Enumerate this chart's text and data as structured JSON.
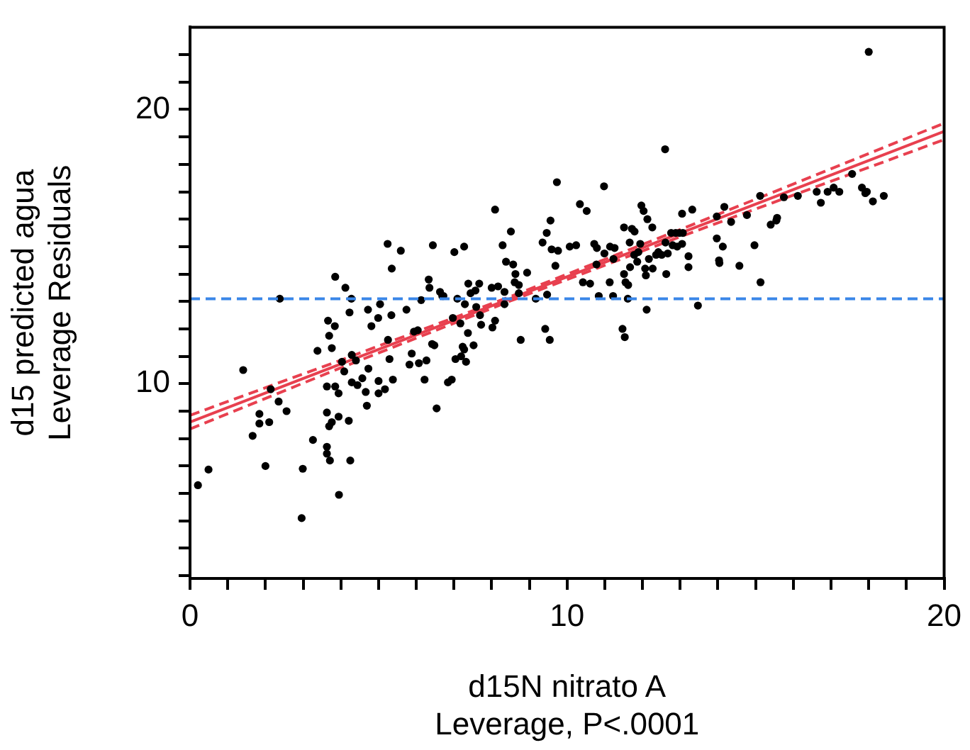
{
  "chart_data": {
    "type": "scatter",
    "xlabel": "d15N nitrato A\nLeverage, P<.0001",
    "ylabel": "d15 predicted agua\nLeverage Residuals",
    "xlim": [
      0,
      20
    ],
    "ylim": [
      2.9,
      23
    ],
    "xticks": [
      0,
      {
        "value": 1,
        "label": null
      },
      {
        "value": 2,
        "label": null
      },
      {
        "value": 3,
        "label": null
      },
      {
        "value": 4,
        "label": null
      },
      {
        "value": 5,
        "label": null
      },
      {
        "value": 6,
        "label": null
      },
      {
        "value": 7,
        "label": null
      },
      {
        "value": 8,
        "label": null
      },
      {
        "value": 9,
        "label": null
      },
      10,
      {
        "value": 11,
        "label": null
      },
      {
        "value": 12,
        "label": null
      },
      {
        "value": 13,
        "label": null
      },
      {
        "value": 14,
        "label": null
      },
      {
        "value": 15,
        "label": null
      },
      {
        "value": 16,
        "label": null
      },
      {
        "value": 17,
        "label": null
      },
      {
        "value": 18,
        "label": null
      },
      {
        "value": 19,
        "label": null
      },
      20
    ],
    "yticks": [
      {
        "value": 3,
        "label": null
      },
      {
        "value": 4,
        "label": null
      },
      {
        "value": 5,
        "label": null
      },
      {
        "value": 6,
        "label": null
      },
      {
        "value": 7,
        "label": null
      },
      {
        "value": 8,
        "label": null
      },
      {
        "value": 9,
        "label": null
      },
      10,
      {
        "value": 11,
        "label": null
      },
      {
        "value": 12,
        "label": null
      },
      {
        "value": 13,
        "label": null
      },
      {
        "value": 14,
        "label": null
      },
      {
        "value": 15,
        "label": null
      },
      {
        "value": 16,
        "label": null
      },
      {
        "value": 17,
        "label": null
      },
      {
        "value": 18,
        "label": null
      },
      {
        "value": 19,
        "label": null
      },
      20,
      {
        "value": 21,
        "label": null
      },
      {
        "value": 22,
        "label": null
      }
    ],
    "grid": false,
    "legend": false,
    "ref_lines": [
      {
        "axis": "y",
        "value": 13.1,
        "color": "#3a86e8",
        "line_style": "dashed"
      }
    ],
    "series": [
      {
        "color": "#000000",
        "marker": "circle",
        "x": [
          0.21,
          0.49,
          1.41,
          1.66,
          1.84,
          1.84,
          2.1,
          2.0,
          2.14,
          2.35,
          2.56,
          2.38,
          2.96,
          2.99,
          3.26,
          3.38,
          3.63,
          3.66,
          3.69,
          3.76,
          3.84,
          3.63,
          3.69,
          3.76,
          3.63,
          3.63,
          3.71,
          3.95,
          3.94,
          3.85,
          3.94,
          4.03,
          4.09,
          4.21,
          4.25,
          4.23,
          4.28,
          4.29,
          4.4,
          4.29,
          4.44,
          4.57,
          4.66,
          4.69,
          4.72,
          4.81,
          4.73,
          5.0,
          5.0,
          5.04,
          4.99,
          5.17,
          5.25,
          5.29,
          5.34,
          5.38,
          5.74,
          5.88,
          5.82,
          5.94,
          6.04,
          6.07,
          6.22,
          6.27,
          6.13,
          6.42,
          6.48,
          6.54,
          6.69,
          6.84,
          6.94,
          6.97,
          7.04,
          7.09,
          7.17,
          7.23,
          7.27,
          7.19,
          7.32,
          7.29,
          7.37,
          7.52,
          7.59,
          7.69,
          7.72,
          8.02,
          8.09,
          8.34,
          8.77,
          9.17,
          9.42,
          9.54,
          3.85,
          4.12,
          5.24,
          5.35,
          5.59,
          6.33,
          6.35,
          6.44,
          6.63,
          6.72,
          7.01,
          7.27,
          7.38,
          7.44,
          7.57,
          7.67,
          8.0,
          8.09,
          8.17,
          8.29,
          8.38,
          8.51,
          8.57,
          8.63,
          8.61,
          8.72,
          8.72,
          8.34,
          8.94,
          9.35,
          9.46,
          9.56,
          9.59,
          9.76,
          9.73,
          9.69,
          9.47,
          10.07,
          10.24,
          10.34,
          10.52,
          10.42,
          10.61,
          10.72,
          10.79,
          10.78,
          10.84,
          10.98,
          10.99,
          11.13,
          11.14,
          11.22,
          11.26,
          11.23,
          11.51,
          11.51,
          11.55,
          11.62,
          11.61,
          11.66,
          11.67,
          11.72,
          11.79,
          11.78,
          11.86,
          11.89,
          11.94,
          11.97,
          12.03,
          12.07,
          12.09,
          12.13,
          12.17,
          12.26,
          12.27,
          12.36,
          12.42,
          12.51,
          12.6,
          12.61,
          12.63,
          12.67,
          12.76,
          12.8,
          12.88,
          12.92,
          12.98,
          13.05,
          13.07,
          13.05,
          13.22,
          13.22,
          13.32,
          13.47,
          13.97,
          13.97,
          14.03,
          14.04,
          14.13,
          14.17,
          14.35,
          14.57,
          14.77,
          14.97,
          15.12,
          15.13,
          15.4,
          15.55,
          15.57,
          15.75,
          16.12,
          16.62,
          16.73,
          16.91,
          17.07,
          17.22,
          17.56,
          17.82,
          17.91,
          17.95,
          18.11,
          18.4,
          18.0,
          12.11,
          11.47,
          11.53
        ],
        "values": [
          6.3,
          6.87,
          10.5,
          8.1,
          8.9,
          8.55,
          8.6,
          7.0,
          9.8,
          9.35,
          9.0,
          13.1,
          5.1,
          6.9,
          7.95,
          11.2,
          9.9,
          12.3,
          11.75,
          11.3,
          12.1,
          8.95,
          8.45,
          8.6,
          7.7,
          7.45,
          7.2,
          5.95,
          8.8,
          9.9,
          9.65,
          10.8,
          10.45,
          8.65,
          7.2,
          12.6,
          13.1,
          11.05,
          10.85,
          10.05,
          9.95,
          10.2,
          9.7,
          9.2,
          12.7,
          12.1,
          10.55,
          10.1,
          9.65,
          12.9,
          12.4,
          9.8,
          11.6,
          10.9,
          12.5,
          10.15,
          12.7,
          11.1,
          10.7,
          11.9,
          11.95,
          10.75,
          10.15,
          10.85,
          13.05,
          11.45,
          11.4,
          9.1,
          13.2,
          10.05,
          10.15,
          12.4,
          10.9,
          13.1,
          12.2,
          11.35,
          11.25,
          11.0,
          10.8,
          12.9,
          11.85,
          11.4,
          12.8,
          12.5,
          12.15,
          12.05,
          12.3,
          12.9,
          11.6,
          13.1,
          12.0,
          11.6,
          13.9,
          13.5,
          15.1,
          14.2,
          14.85,
          13.8,
          13.5,
          15.05,
          13.35,
          13.2,
          14.8,
          15.0,
          13.65,
          13.3,
          13.4,
          13.65,
          13.5,
          16.35,
          13.55,
          15.05,
          14.45,
          15.55,
          14.35,
          14.0,
          13.7,
          13.6,
          13.3,
          13.35,
          14.05,
          15.15,
          15.5,
          15.95,
          14.9,
          14.85,
          17.35,
          14.3,
          13.25,
          15.0,
          15.05,
          16.55,
          16.3,
          13.7,
          13.65,
          15.1,
          14.95,
          14.35,
          13.2,
          17.2,
          14.75,
          13.7,
          15.0,
          13.2,
          14.95,
          14.55,
          15.7,
          14.0,
          13.7,
          13.6,
          13.1,
          15.15,
          14.25,
          15.65,
          15.55,
          14.7,
          14.45,
          14.8,
          15.1,
          16.5,
          16.3,
          14.2,
          13.95,
          16.0,
          14.55,
          15.7,
          14.2,
          14.7,
          14.8,
          14.7,
          18.55,
          15.15,
          14.0,
          14.75,
          15.5,
          15.05,
          15.5,
          15.0,
          15.5,
          16.2,
          15.5,
          15.1,
          14.65,
          14.25,
          16.35,
          12.85,
          16.1,
          15.3,
          14.5,
          14.4,
          15.0,
          16.45,
          15.9,
          14.3,
          16.15,
          15.05,
          16.85,
          13.7,
          15.8,
          15.95,
          16.05,
          16.8,
          16.85,
          17.0,
          16.6,
          17.0,
          17.15,
          17.0,
          17.65,
          17.15,
          16.95,
          17.0,
          16.65,
          16.85,
          22.1,
          12.7,
          12.0,
          11.7
        ]
      },
      {
        "type": "line",
        "color": "#e8404f",
        "line_style": "solid",
        "marker": "none",
        "x": [
          0,
          20
        ],
        "values": [
          8.6,
          19.2
        ]
      },
      {
        "type": "line",
        "color": "#e8404f",
        "line_style": "dashed",
        "marker": "none",
        "x": [
          0,
          4,
          8.5,
          13,
          20
        ],
        "values": [
          8.85,
          10.86,
          13.18,
          15.62,
          19.5
        ]
      },
      {
        "type": "line",
        "color": "#e8404f",
        "line_style": "dashed",
        "marker": "none",
        "x": [
          0,
          4,
          8.5,
          13,
          20
        ],
        "values": [
          8.35,
          10.58,
          13.02,
          15.36,
          18.9
        ]
      }
    ]
  }
}
